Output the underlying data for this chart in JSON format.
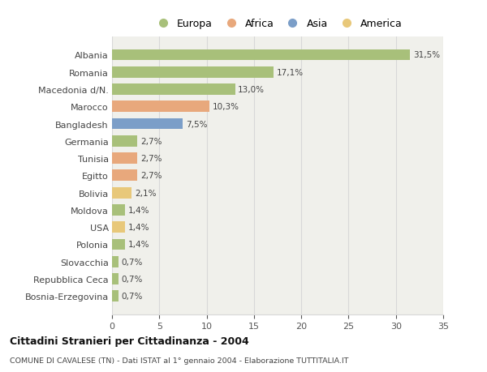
{
  "categories": [
    "Albania",
    "Romania",
    "Macedonia d/N.",
    "Marocco",
    "Bangladesh",
    "Germania",
    "Tunisia",
    "Egitto",
    "Bolivia",
    "Moldova",
    "USA",
    "Polonia",
    "Slovacchia",
    "Repubblica Ceca",
    "Bosnia-Erzegovina"
  ],
  "values": [
    31.5,
    17.1,
    13.0,
    10.3,
    7.5,
    2.7,
    2.7,
    2.7,
    2.1,
    1.4,
    1.4,
    1.4,
    0.7,
    0.7,
    0.7
  ],
  "labels": [
    "31,5%",
    "17,1%",
    "13,0%",
    "10,3%",
    "7,5%",
    "2,7%",
    "2,7%",
    "2,7%",
    "2,1%",
    "1,4%",
    "1,4%",
    "1,4%",
    "0,7%",
    "0,7%",
    "0,7%"
  ],
  "colors": [
    "#a8c07a",
    "#a8c07a",
    "#a8c07a",
    "#e8a87c",
    "#7b9ec8",
    "#a8c07a",
    "#e8a87c",
    "#e8a87c",
    "#e8c87a",
    "#a8c07a",
    "#e8c87a",
    "#a8c07a",
    "#a8c07a",
    "#a8c07a",
    "#a8c07a"
  ],
  "legend_labels": [
    "Europa",
    "Africa",
    "Asia",
    "America"
  ],
  "legend_colors": [
    "#a8c07a",
    "#e8a87c",
    "#7b9ec8",
    "#e8c87a"
  ],
  "title": "Cittadini Stranieri per Cittadinanza - 2004",
  "subtitle": "COMUNE DI CAVALESE (TN) - Dati ISTAT al 1° gennaio 2004 - Elaborazione TUTTITALIA.IT",
  "xlim": [
    0,
    35
  ],
  "xticks": [
    0,
    5,
    10,
    15,
    20,
    25,
    30,
    35
  ],
  "background_color": "#ffffff",
  "plot_bg_color": "#f0f0eb",
  "grid_color": "#d8d8d8"
}
